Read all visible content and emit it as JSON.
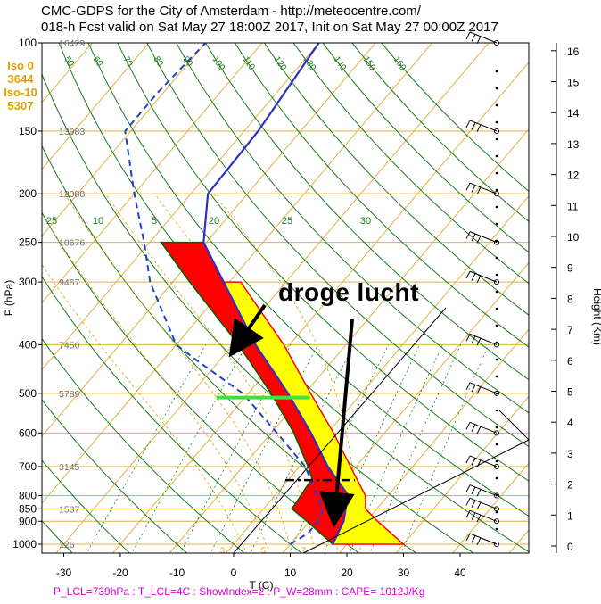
{
  "header": {
    "line1": "CMC-GDPS for the City of Amsterdam - http://meteocentre.com/",
    "line2": "018-h Fcst valid on Sat May 27 18:00Z 2017, Init on Sat May 27 00:00Z 2017"
  },
  "iso": {
    "iso0_label": "Iso 0",
    "iso0_value": "3644",
    "iso10_label": "Iso-10",
    "iso10_value": "5307"
  },
  "annotation": "droge lucht",
  "footer": "P_LCL=739hPa : T_LCL=4C : ShowIndex=2 : P_W=28mm : CAPE= 1012J/Kg",
  "colors": {
    "temperature": "#3030c0",
    "dewpoint": "#2040d0",
    "cape": "#ff0000",
    "cin": "#ffff00",
    "isotherm": "#e0b040",
    "dry_adiabat": "#1a7a1a",
    "mixing_ratio": "#1a7a1a",
    "moist_adiabat": "#e0a000"
  },
  "chart_data": {
    "type": "skew-t",
    "xlabel": "T (C)",
    "ylabel": "P (hPa)",
    "y2label": "Height (Km)",
    "x_ticks": [
      -30,
      -20,
      -10,
      0,
      10,
      20,
      30,
      40
    ],
    "p_ticks": [
      100,
      150,
      200,
      250,
      300,
      400,
      500,
      600,
      700,
      800,
      850,
      900,
      1000
    ],
    "height_ticks": [
      0,
      1,
      2,
      3,
      4,
      5,
      6,
      7,
      8,
      9,
      10,
      11,
      12,
      13,
      14,
      15,
      16
    ],
    "geopotential_heights": [
      {
        "p": 100,
        "z": "16429"
      },
      {
        "p": 150,
        "z": "13983"
      },
      {
        "p": 200,
        "z": "12088"
      },
      {
        "p": 250,
        "z": "10676"
      },
      {
        "p": 300,
        "z": "9467"
      },
      {
        "p": 400,
        "z": "7450"
      },
      {
        "p": 500,
        "z": "5789"
      },
      {
        "p": 700,
        "z": "3145"
      },
      {
        "p": 850,
        "z": "1537"
      },
      {
        "p": 1000,
        "z": "126"
      }
    ],
    "temperature": [
      {
        "p": 1000,
        "t": 17.5
      },
      {
        "p": 900,
        "t": 16.0
      },
      {
        "p": 850,
        "t": 14.5
      },
      {
        "p": 800,
        "t": 13.0
      },
      {
        "p": 700,
        "t": 5.0
      },
      {
        "p": 600,
        "t": -3.0
      },
      {
        "p": 500,
        "t": -13.0
      },
      {
        "p": 400,
        "t": -26.0
      },
      {
        "p": 300,
        "t": -41.0
      },
      {
        "p": 250,
        "t": -50.5
      },
      {
        "p": 200,
        "t": -57.0
      },
      {
        "p": 150,
        "t": -57.5
      },
      {
        "p": 100,
        "t": -60.0
      }
    ],
    "dewpoint": [
      {
        "p": 1000,
        "t": 10.0
      },
      {
        "p": 950,
        "t": 11.5
      },
      {
        "p": 900,
        "t": 11.5
      },
      {
        "p": 850,
        "t": 10.5
      },
      {
        "p": 700,
        "t": 1.0
      },
      {
        "p": 600,
        "t": -9.0
      },
      {
        "p": 500,
        "t": -21.0
      },
      {
        "p": 430,
        "t": -34.0
      },
      {
        "p": 400,
        "t": -40.0
      },
      {
        "p": 300,
        "t": -54.0
      },
      {
        "p": 250,
        "t": -61.0
      },
      {
        "p": 200,
        "t": -70.0
      },
      {
        "p": 150,
        "t": -81.0
      },
      {
        "p": 125,
        "t": -81.0
      },
      {
        "p": 100,
        "t": -80.0
      }
    ],
    "parcel": [
      {
        "p": 1000,
        "t": 17.5
      },
      {
        "p": 900,
        "t": 9.5
      },
      {
        "p": 850,
        "t": 5.0
      },
      {
        "p": 739,
        "t": 4.0
      },
      {
        "p": 700,
        "t": 1.5
      },
      {
        "p": 600,
        "t": -6.0
      },
      {
        "p": 500,
        "t": -16.0
      },
      {
        "p": 400,
        "t": -29.0
      },
      {
        "p": 300,
        "t": -47.0
      },
      {
        "p": 250,
        "t": -58.0
      }
    ],
    "dry_adiabats_theta_c": [
      -30,
      -20,
      -10,
      0,
      10,
      20,
      30,
      40,
      50,
      60,
      70,
      80,
      90,
      100,
      110,
      120,
      130,
      140,
      150,
      160
    ],
    "dry_adiabat_labels": [
      "50",
      "60",
      "70",
      "80",
      "90",
      "100",
      "110",
      "120",
      "130",
      "140",
      "150",
      "160"
    ],
    "mixing_ratio_labels": [
      "25",
      "10",
      "5",
      "20",
      "25",
      "30"
    ],
    "isotherm_labels": [
      "-30",
      "-20",
      "-10",
      "0",
      "10",
      "20",
      "30"
    ],
    "lcl_p": 739,
    "green_marker_p": 510
  }
}
